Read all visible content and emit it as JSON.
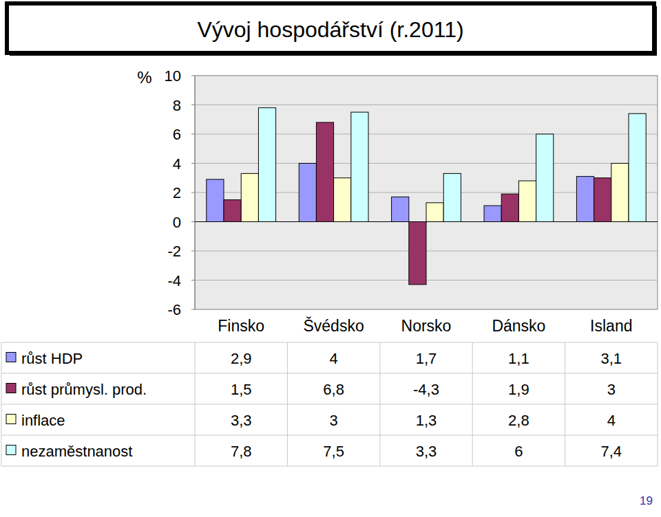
{
  "chart_data": {
    "type": "bar",
    "title": "Vývoj hospodářství (r.2011)",
    "y_label": "%",
    "categories": [
      "Finsko",
      "Švédsko",
      "Norsko",
      "Dánsko",
      "Island"
    ],
    "series": [
      {
        "name": "růst HDP",
        "color": "#9999ff",
        "values": [
          2.9,
          4,
          1.7,
          1.1,
          3.1
        ],
        "value_labels": [
          "2,9",
          "4",
          "1,7",
          "1,1",
          "3,1"
        ]
      },
      {
        "name": "růst průmysl. prod.",
        "color": "#993366",
        "values": [
          1.5,
          6.8,
          -4.3,
          1.9,
          3
        ],
        "value_labels": [
          "1,5",
          "6,8",
          "-4,3",
          "1,9",
          "3"
        ]
      },
      {
        "name": "inflace",
        "color": "#ffffcc",
        "values": [
          3.3,
          3,
          1.3,
          2.8,
          4
        ],
        "value_labels": [
          "3,3",
          "3",
          "1,3",
          "2,8",
          "4"
        ]
      },
      {
        "name": "nezaměstnanost",
        "color": "#ccffff",
        "values": [
          7.8,
          7.5,
          3.3,
          6,
          7.4
        ],
        "value_labels": [
          "7,8",
          "7,5",
          "3,3",
          "6",
          "7,4"
        ]
      }
    ],
    "ylim": [
      -6,
      10
    ],
    "yticks": [
      -6,
      -4,
      -2,
      0,
      2,
      4,
      6,
      8,
      10
    ],
    "grid": true,
    "legend": "bottom",
    "data_labels": true,
    "annotations": [
      "19"
    ]
  }
}
